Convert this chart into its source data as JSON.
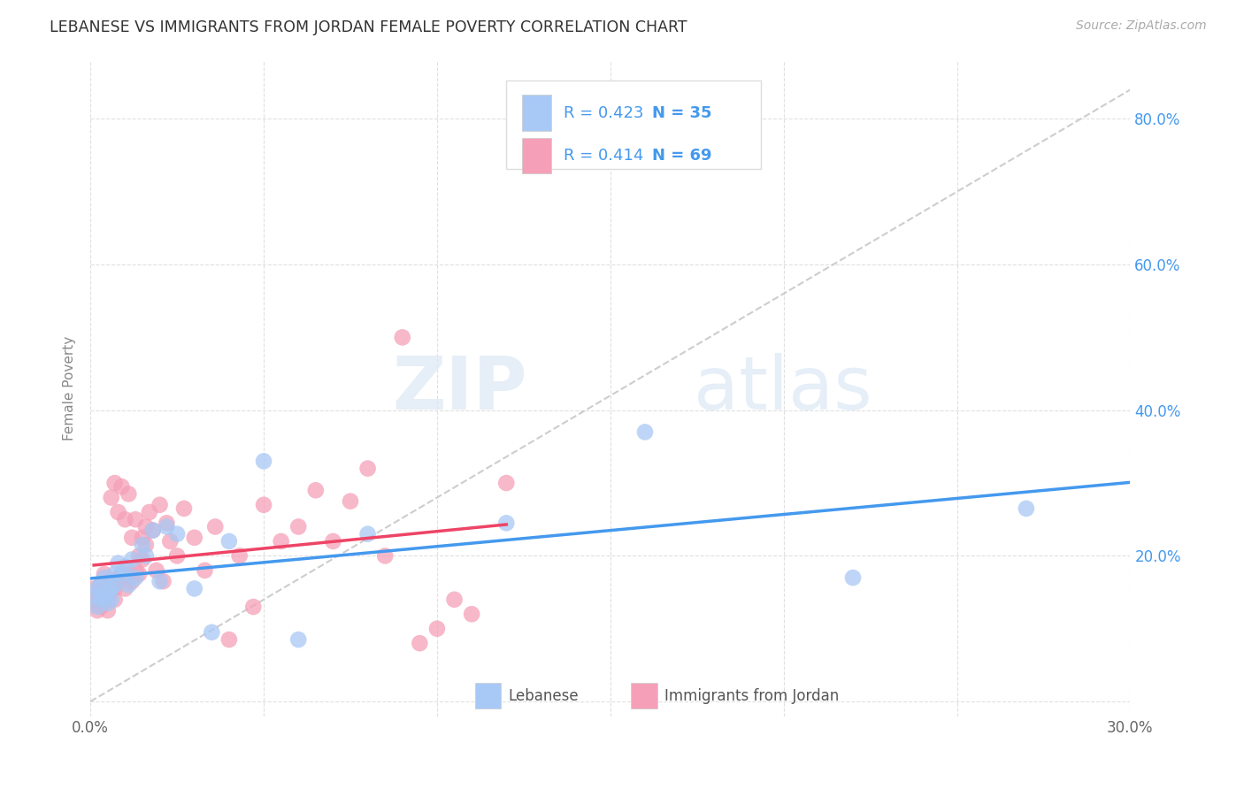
{
  "title": "LEBANESE VS IMMIGRANTS FROM JORDAN FEMALE POVERTY CORRELATION CHART",
  "source": "Source: ZipAtlas.com",
  "ylabel": "Female Poverty",
  "watermark_zip": "ZIP",
  "watermark_atlas": "atlas",
  "xlim": [
    0.0,
    0.3
  ],
  "ylim": [
    -0.02,
    0.88
  ],
  "xticks": [
    0.0,
    0.05,
    0.1,
    0.15,
    0.2,
    0.25,
    0.3
  ],
  "yticks": [
    0.0,
    0.2,
    0.4,
    0.6,
    0.8
  ],
  "R_blue": 0.423,
  "N_blue": 35,
  "R_pink": 0.414,
  "N_pink": 69,
  "blue_color": "#a8c8f5",
  "pink_color": "#f5a0b8",
  "blue_line_color": "#4499ee",
  "pink_line_color": "#ee4466",
  "diag_line_color": "#c8c8c8",
  "legend_label_blue": "Lebanese",
  "legend_label_pink": "Immigrants from Jordan",
  "grid_color": "#e0e0e0",
  "title_color": "#333333",
  "blue_scatter_x": [
    0.001,
    0.002,
    0.002,
    0.003,
    0.003,
    0.004,
    0.004,
    0.005,
    0.005,
    0.006,
    0.006,
    0.007,
    0.007,
    0.008,
    0.009,
    0.01,
    0.011,
    0.012,
    0.013,
    0.015,
    0.016,
    0.018,
    0.02,
    0.022,
    0.025,
    0.03,
    0.035,
    0.04,
    0.05,
    0.06,
    0.08,
    0.12,
    0.16,
    0.22,
    0.27
  ],
  "blue_scatter_y": [
    0.145,
    0.13,
    0.155,
    0.14,
    0.16,
    0.145,
    0.17,
    0.135,
    0.15,
    0.14,
    0.155,
    0.16,
    0.175,
    0.19,
    0.175,
    0.185,
    0.16,
    0.195,
    0.17,
    0.215,
    0.2,
    0.235,
    0.165,
    0.24,
    0.23,
    0.155,
    0.095,
    0.22,
    0.33,
    0.085,
    0.23,
    0.245,
    0.37,
    0.17,
    0.265
  ],
  "pink_scatter_x": [
    0.001,
    0.001,
    0.002,
    0.002,
    0.002,
    0.003,
    0.003,
    0.003,
    0.004,
    0.004,
    0.004,
    0.005,
    0.005,
    0.005,
    0.006,
    0.006,
    0.006,
    0.007,
    0.007,
    0.007,
    0.008,
    0.008,
    0.008,
    0.009,
    0.009,
    0.01,
    0.01,
    0.01,
    0.011,
    0.011,
    0.012,
    0.012,
    0.013,
    0.013,
    0.014,
    0.014,
    0.015,
    0.015,
    0.016,
    0.016,
    0.017,
    0.018,
    0.019,
    0.02,
    0.021,
    0.022,
    0.023,
    0.025,
    0.027,
    0.03,
    0.033,
    0.036,
    0.04,
    0.043,
    0.047,
    0.05,
    0.055,
    0.06,
    0.065,
    0.07,
    0.075,
    0.08,
    0.085,
    0.09,
    0.095,
    0.1,
    0.105,
    0.11,
    0.12
  ],
  "pink_scatter_y": [
    0.135,
    0.155,
    0.14,
    0.15,
    0.125,
    0.145,
    0.16,
    0.13,
    0.145,
    0.16,
    0.175,
    0.14,
    0.155,
    0.125,
    0.28,
    0.15,
    0.165,
    0.14,
    0.3,
    0.155,
    0.165,
    0.26,
    0.17,
    0.175,
    0.295,
    0.25,
    0.155,
    0.17,
    0.175,
    0.285,
    0.225,
    0.165,
    0.25,
    0.18,
    0.175,
    0.2,
    0.225,
    0.195,
    0.24,
    0.215,
    0.26,
    0.235,
    0.18,
    0.27,
    0.165,
    0.245,
    0.22,
    0.2,
    0.265,
    0.225,
    0.18,
    0.24,
    0.085,
    0.2,
    0.13,
    0.27,
    0.22,
    0.24,
    0.29,
    0.22,
    0.275,
    0.32,
    0.2,
    0.5,
    0.08,
    0.1,
    0.14,
    0.12,
    0.3
  ]
}
